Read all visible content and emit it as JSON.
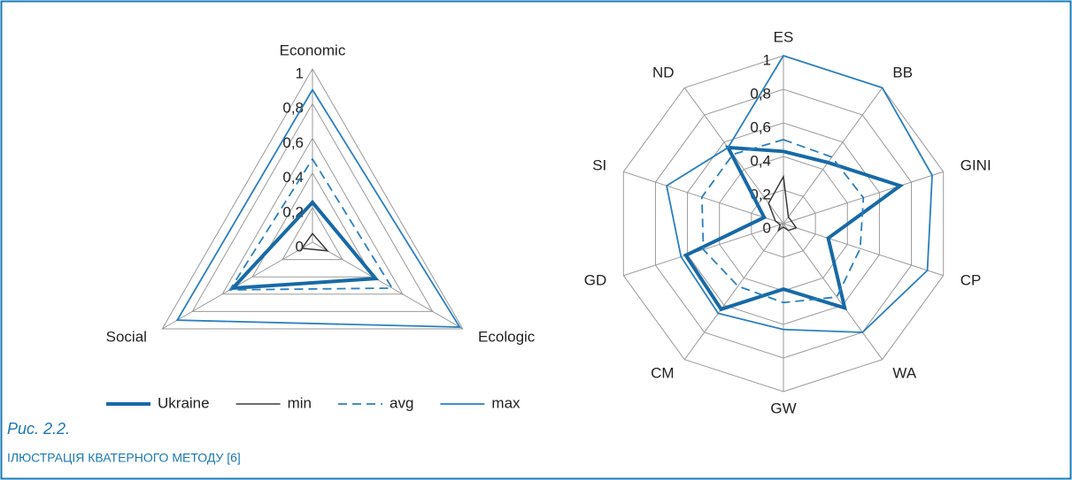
{
  "chart_data": [
    {
      "type": "radar",
      "categories": [
        "Economic",
        "Ecologic",
        "Social"
      ],
      "ylim": [
        0,
        1
      ],
      "yticks": [
        0,
        {
          "value": 0.2,
          "label": "0,2"
        },
        {
          "value": 0.4,
          "label": "0,4"
        },
        {
          "value": 0.6,
          "label": "0,6"
        },
        {
          "value": 0.8,
          "label": "0,8"
        },
        1
      ],
      "legend": true,
      "legend_position": "bottom",
      "series": [
        {
          "name": "Ukraine",
          "color": "#1769a6",
          "width": 4,
          "dash": false,
          "values": [
            0.23,
            0.42,
            0.53
          ]
        },
        {
          "name": "min",
          "color": "#3a3a3a",
          "width": 1.5,
          "dash": false,
          "values": [
            0.05,
            0.1,
            0.07
          ]
        },
        {
          "name": "avg",
          "color": "#2a7fbf",
          "width": 1.8,
          "dash": true,
          "values": [
            0.48,
            0.53,
            0.55
          ]
        },
        {
          "name": "max",
          "color": "#2a7fbf",
          "width": 1.8,
          "dash": false,
          "values": [
            0.88,
            0.98,
            0.9
          ]
        }
      ]
    },
    {
      "type": "radar",
      "categories": [
        "ES",
        "BB",
        "GINI",
        "CP",
        "WA",
        "GW",
        "CM",
        "GD",
        "SI",
        "ND"
      ],
      "ylim": [
        0,
        1
      ],
      "yticks": [
        0,
        {
          "value": 0.2,
          "label": "0,2"
        },
        {
          "value": 0.4,
          "label": "0,4"
        },
        {
          "value": 0.6,
          "label": "0,6"
        },
        {
          "value": 0.8,
          "label": "0,8"
        },
        1
      ],
      "legend": false,
      "series": [
        {
          "name": "Ukraine",
          "color": "#1769a6",
          "width": 4,
          "dash": false,
          "values": [
            0.43,
            0.45,
            0.73,
            0.28,
            0.62,
            0.39,
            0.63,
            0.61,
            0.12,
            0.56
          ]
        },
        {
          "name": "min",
          "color": "#3a3a3a",
          "width": 1.5,
          "dash": false,
          "values": [
            0.28,
            0.05,
            0.05,
            0.08,
            0.05,
            0.02,
            0.05,
            0.02,
            0.05,
            0.15
          ]
        },
        {
          "name": "avg",
          "color": "#2a7fbf",
          "width": 1.8,
          "dash": true,
          "values": [
            0.5,
            0.49,
            0.5,
            0.48,
            0.54,
            0.47,
            0.46,
            0.5,
            0.51,
            0.51
          ]
        },
        {
          "name": "max",
          "color": "#2a7fbf",
          "width": 1.8,
          "dash": false,
          "values": [
            1.0,
            1.0,
            0.93,
            0.9,
            0.8,
            0.63,
            0.66,
            0.64,
            0.73,
            0.56
          ]
        }
      ]
    }
  ],
  "caption": {
    "label": "Рис. 2.2.",
    "title": "ІЛЮСТРАЦІЯ КВАТЕРНОГО МЕТОДУ [6]"
  }
}
